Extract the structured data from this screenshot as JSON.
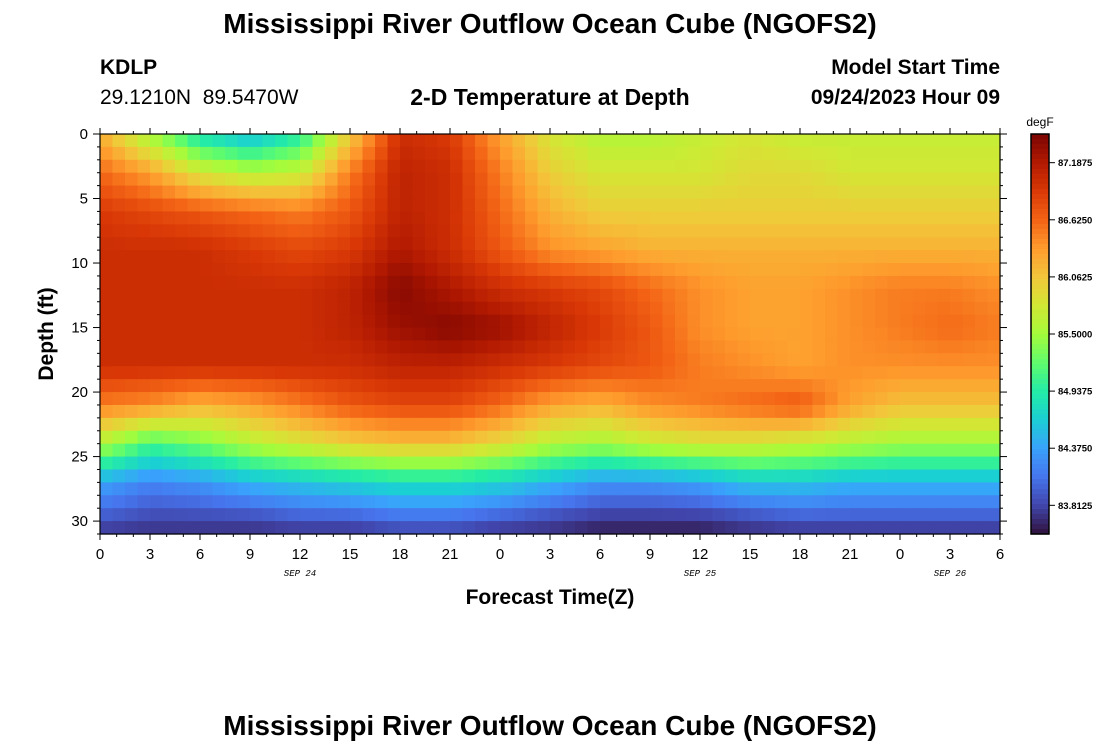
{
  "page": {
    "title": "Mississippi River Outflow Ocean Cube (NGOFS2)",
    "title_bottom": "Mississippi River Outflow Ocean Cube (NGOFS2)",
    "station": "KDLP",
    "coordinates": "29.1210N  89.5470W",
    "subtitle": "2-D Temperature at Depth",
    "model_start_label": "Model Start Time",
    "model_start_value": "09/24/2023 Hour 09"
  },
  "chart_data": {
    "type": "heatmap",
    "title": "2-D Temperature at Depth",
    "xlabel": "Forecast Time(Z)",
    "ylabel": "Depth (ft)",
    "x_range_hours": [
      0,
      54
    ],
    "x_tick_labels": [
      "0",
      "3",
      "6",
      "9",
      "12",
      "15",
      "18",
      "21",
      "0",
      "3",
      "6",
      "9",
      "12",
      "15",
      "18",
      "21",
      "0",
      "3",
      "6"
    ],
    "date_labels": [
      {
        "text": "SEP 24",
        "hour": 12
      },
      {
        "text": "SEP 25",
        "hour": 36
      },
      {
        "text": "SEP 26",
        "hour": 51
      }
    ],
    "y_range_ft": [
      0,
      31
    ],
    "y_tick_labels": [
      "0",
      "5",
      "10",
      "15",
      "20",
      "25",
      "30"
    ],
    "colorbar": {
      "unit": "degF",
      "range": [
        83.53,
        87.47
      ],
      "tick_labels": [
        "87.1875",
        "86.6250",
        "86.0625",
        "85.5000",
        "84.9375",
        "84.3750",
        "83.8125"
      ],
      "colors": [
        "#30123b",
        "#4145ab",
        "#4675ed",
        "#39a2fc",
        "#1bcfd4",
        "#24eca6",
        "#61fc6c",
        "#a4fc3b",
        "#d1e834",
        "#f3c63a",
        "#fe9b2d",
        "#f36315",
        "#d93806",
        "#b11901",
        "#7a0402"
      ]
    },
    "time_hours": [
      0,
      3,
      6,
      9,
      12,
      15,
      18,
      21,
      24,
      27,
      30,
      33,
      36,
      39,
      42,
      45,
      48,
      51,
      54
    ],
    "depths_ft": [
      0,
      3,
      6,
      9,
      12,
      15,
      18,
      21,
      24,
      27,
      30,
      31
    ],
    "temperature_degF": [
      [
        86.2,
        85.5,
        84.8,
        84.5,
        84.9,
        86.0,
        87.0,
        86.9,
        86.3,
        85.8,
        85.6,
        85.6,
        85.7,
        85.8,
        85.7,
        85.7,
        85.7,
        85.7,
        85.7
      ],
      [
        86.6,
        86.3,
        85.8,
        85.6,
        85.7,
        86.5,
        87.1,
        87.0,
        86.5,
        86.0,
        85.8,
        85.8,
        85.8,
        85.9,
        85.9,
        85.8,
        85.8,
        85.8,
        85.8
      ],
      [
        86.9,
        86.8,
        86.7,
        86.6,
        86.5,
        86.7,
        87.1,
        87.0,
        86.6,
        86.2,
        86.0,
        86.0,
        86.0,
        86.0,
        86.0,
        86.0,
        86.0,
        86.0,
        86.0
      ],
      [
        87.0,
        87.0,
        87.0,
        86.9,
        86.8,
        86.9,
        87.2,
        87.0,
        86.7,
        86.4,
        86.3,
        86.2,
        86.2,
        86.2,
        86.2,
        86.2,
        86.2,
        86.2,
        86.2
      ],
      [
        87.0,
        87.0,
        87.0,
        87.0,
        87.0,
        87.1,
        87.4,
        87.2,
        87.0,
        86.9,
        86.8,
        86.6,
        86.4,
        86.3,
        86.3,
        86.4,
        86.5,
        86.5,
        86.4
      ],
      [
        87.0,
        87.0,
        87.0,
        87.0,
        87.0,
        87.1,
        87.3,
        87.4,
        87.3,
        87.1,
        86.9,
        86.7,
        86.4,
        86.3,
        86.3,
        86.4,
        86.5,
        86.6,
        86.5
      ],
      [
        87.0,
        87.0,
        87.0,
        87.0,
        87.0,
        87.0,
        87.1,
        87.1,
        87.0,
        86.9,
        86.8,
        86.7,
        86.5,
        86.4,
        86.3,
        86.4,
        86.4,
        86.4,
        86.4
      ],
      [
        86.5,
        86.4,
        86.2,
        86.3,
        86.5,
        86.7,
        86.8,
        86.8,
        86.6,
        86.3,
        86.2,
        86.4,
        86.5,
        86.6,
        86.7,
        86.3,
        86.1,
        86.1,
        86.1
      ],
      [
        85.6,
        85.1,
        85.3,
        85.6,
        85.8,
        86.0,
        86.1,
        86.1,
        85.9,
        85.6,
        85.5,
        85.7,
        85.8,
        85.8,
        85.7,
        85.6,
        85.5,
        85.5,
        85.5
      ],
      [
        84.4,
        84.2,
        84.3,
        84.5,
        84.6,
        84.7,
        84.8,
        84.8,
        84.7,
        84.5,
        84.3,
        84.3,
        84.4,
        84.6,
        84.6,
        84.5,
        84.5,
        84.5,
        84.5
      ],
      [
        83.9,
        83.8,
        83.8,
        83.8,
        83.9,
        83.9,
        84.0,
        84.0,
        83.9,
        83.8,
        83.7,
        83.7,
        83.7,
        83.8,
        83.9,
        83.9,
        83.9,
        83.9,
        83.9
      ],
      [
        83.7,
        83.7,
        83.7,
        83.7,
        83.7,
        83.7,
        83.8,
        83.8,
        83.7,
        83.7,
        83.6,
        83.6,
        83.6,
        83.7,
        83.7,
        83.7,
        83.7,
        83.7,
        83.7
      ]
    ]
  }
}
